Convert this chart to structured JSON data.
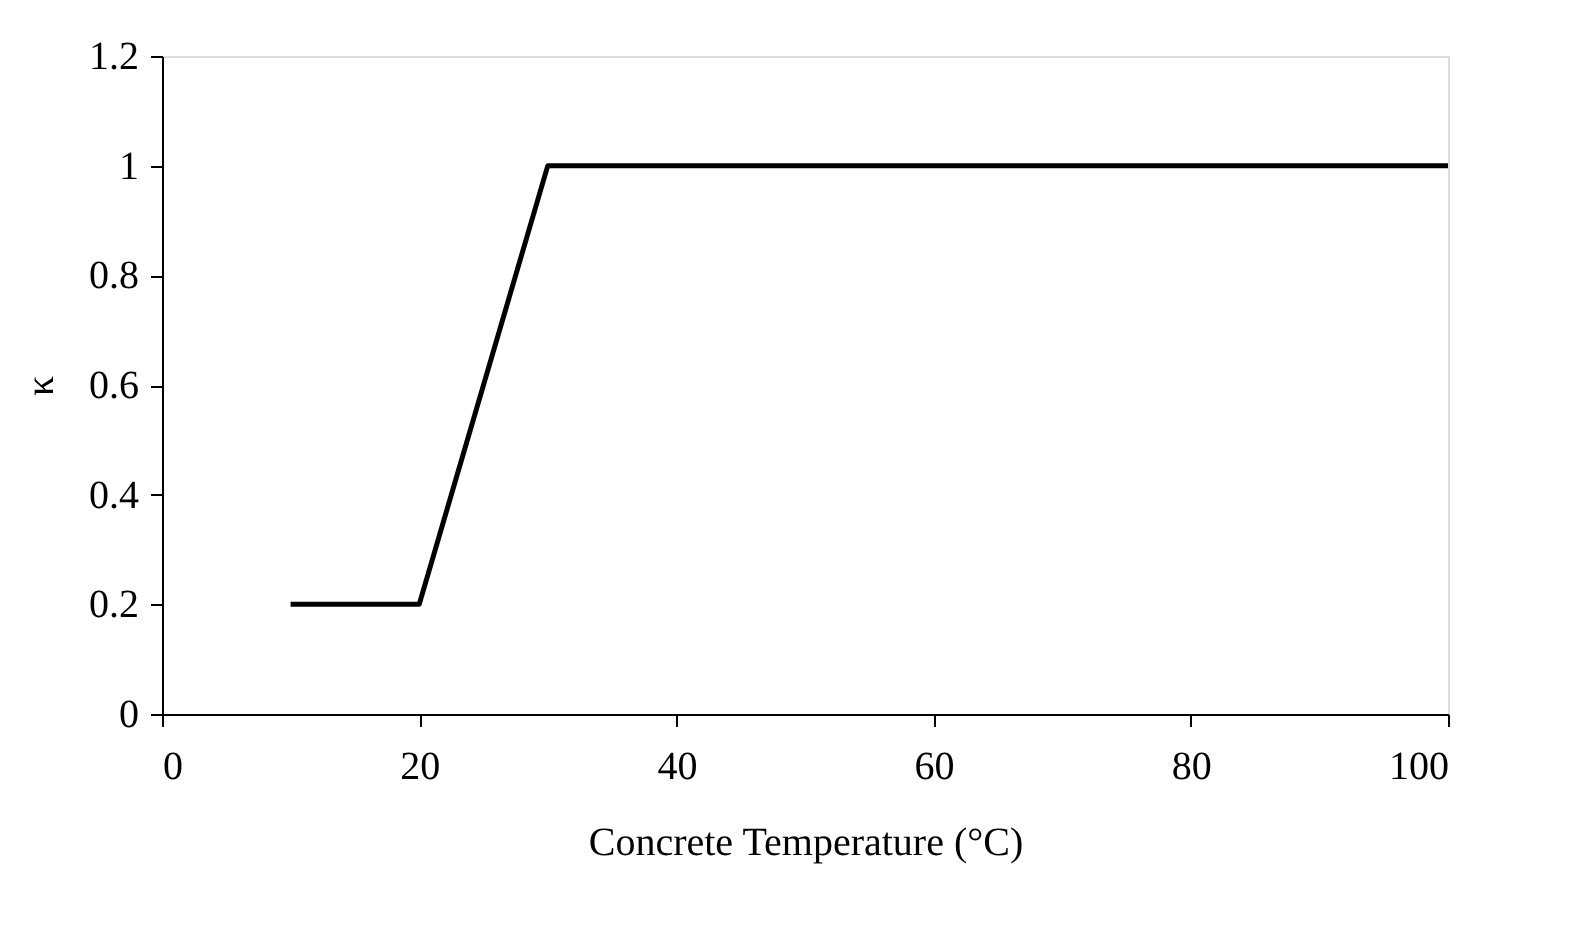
{
  "chart_data": {
    "type": "line",
    "xlabel": "Concrete Temperature (°C)",
    "ylabel": "κ",
    "x": [
      10,
      20,
      30,
      40,
      100
    ],
    "series": [
      {
        "color": "#000000",
        "values": [
          0.2,
          0.2,
          1,
          1,
          1
        ]
      }
    ],
    "xlim": [
      0,
      100
    ],
    "xticks": [
      0,
      20,
      40,
      60,
      80,
      100
    ],
    "ylim": [
      0,
      1.2
    ],
    "yticks": [
      0,
      0.2,
      0.4,
      0.6,
      0.8,
      1,
      1.2
    ],
    "grid": false,
    "marker": "none",
    "line_style": "solid"
  }
}
